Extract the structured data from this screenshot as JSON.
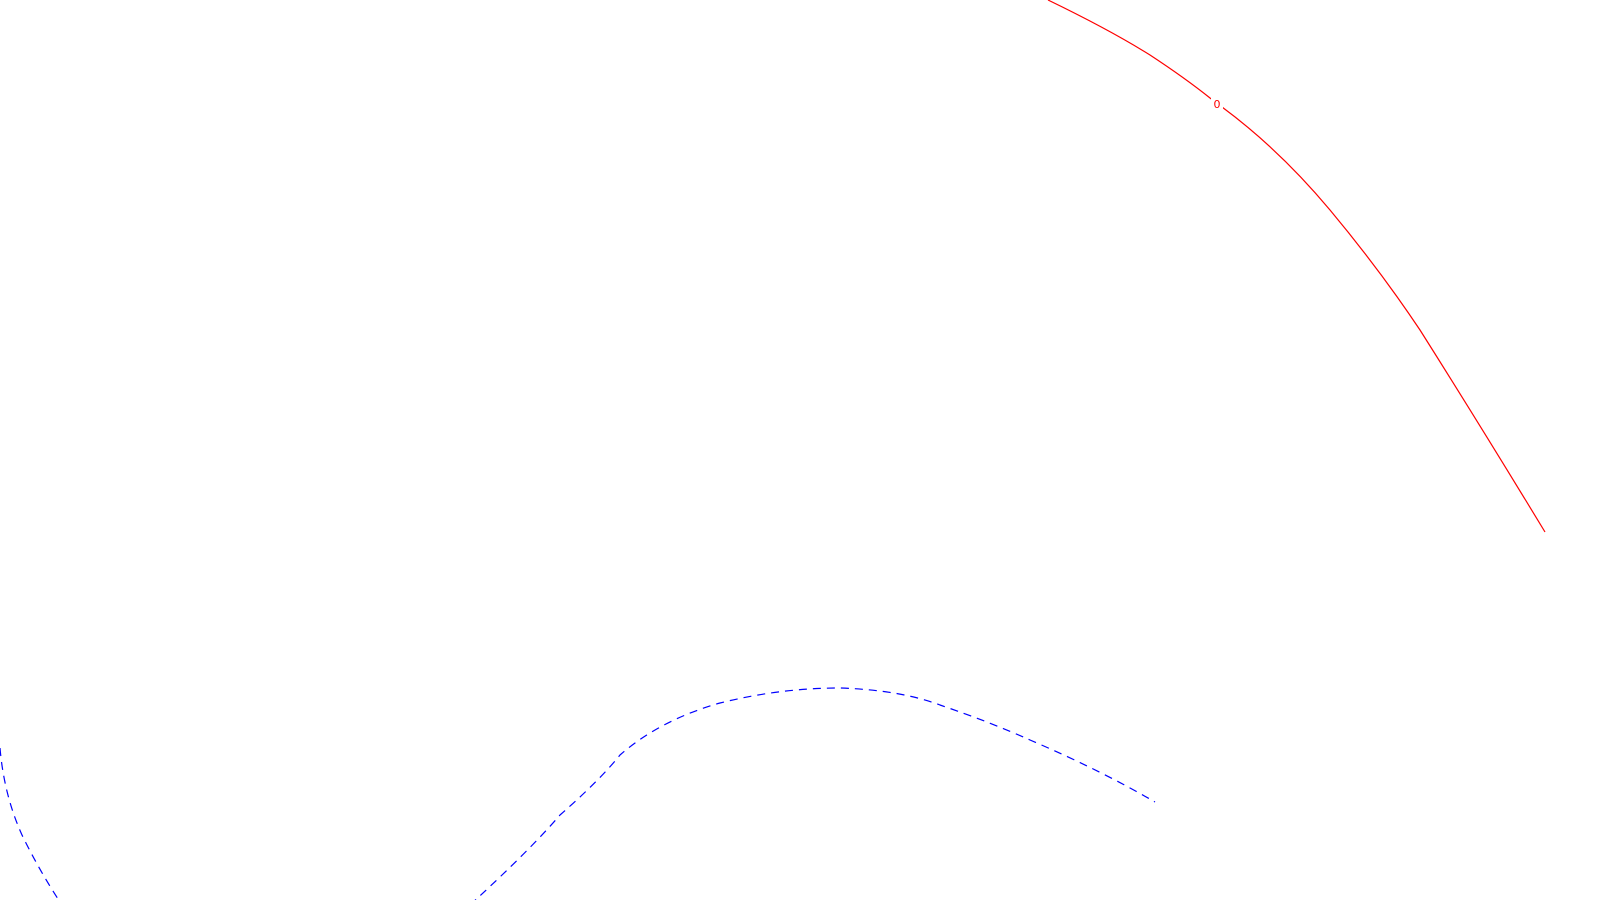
{
  "canvas": {
    "background": "#ffffff"
  },
  "contours": [
    {
      "name": "solid-contour",
      "color": "#ff0000",
      "style": "solid",
      "label": "0"
    },
    {
      "name": "dashed-contour",
      "color": "#0000ff",
      "style": "dashed",
      "label": ""
    },
    {
      "name": "dashed-contour-left",
      "color": "#0000ff",
      "style": "dashed",
      "label": ""
    }
  ]
}
